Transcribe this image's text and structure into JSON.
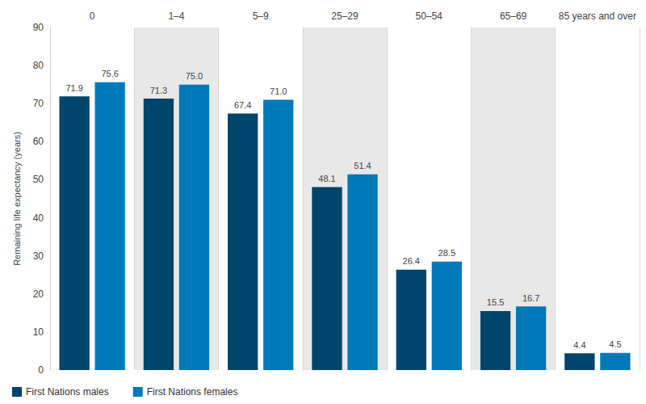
{
  "chart_data": {
    "type": "bar",
    "y_label": "Remaining life expectancy (years)",
    "categories": [
      "0",
      "1–4",
      "5–9",
      "25–29",
      "50–54",
      "65–69",
      "85 years and over"
    ],
    "series": [
      {
        "name": "First Nations males",
        "color": "#00456b",
        "values": [
          71.9,
          71.3,
          67.4,
          48.1,
          26.4,
          15.5,
          4.4
        ],
        "value_labels": [
          "71.9",
          "71.3",
          "67.4",
          "48.1",
          "26.4",
          "15.5",
          "4.4"
        ]
      },
      {
        "name": "First Nations females",
        "color": "#0079b8",
        "values": [
          75.6,
          75.0,
          71.0,
          51.4,
          28.5,
          16.7,
          4.5
        ],
        "value_labels": [
          "75.6",
          "75.0",
          "71.0",
          "51.4",
          "28.5",
          "16.7",
          "4.5"
        ]
      }
    ],
    "ylim": [
      0,
      90
    ],
    "yticks": [
      0,
      10,
      20,
      30,
      40,
      50,
      60,
      70,
      80,
      90
    ],
    "grid": false,
    "legend": "bottom-left",
    "data_labels": true
  }
}
